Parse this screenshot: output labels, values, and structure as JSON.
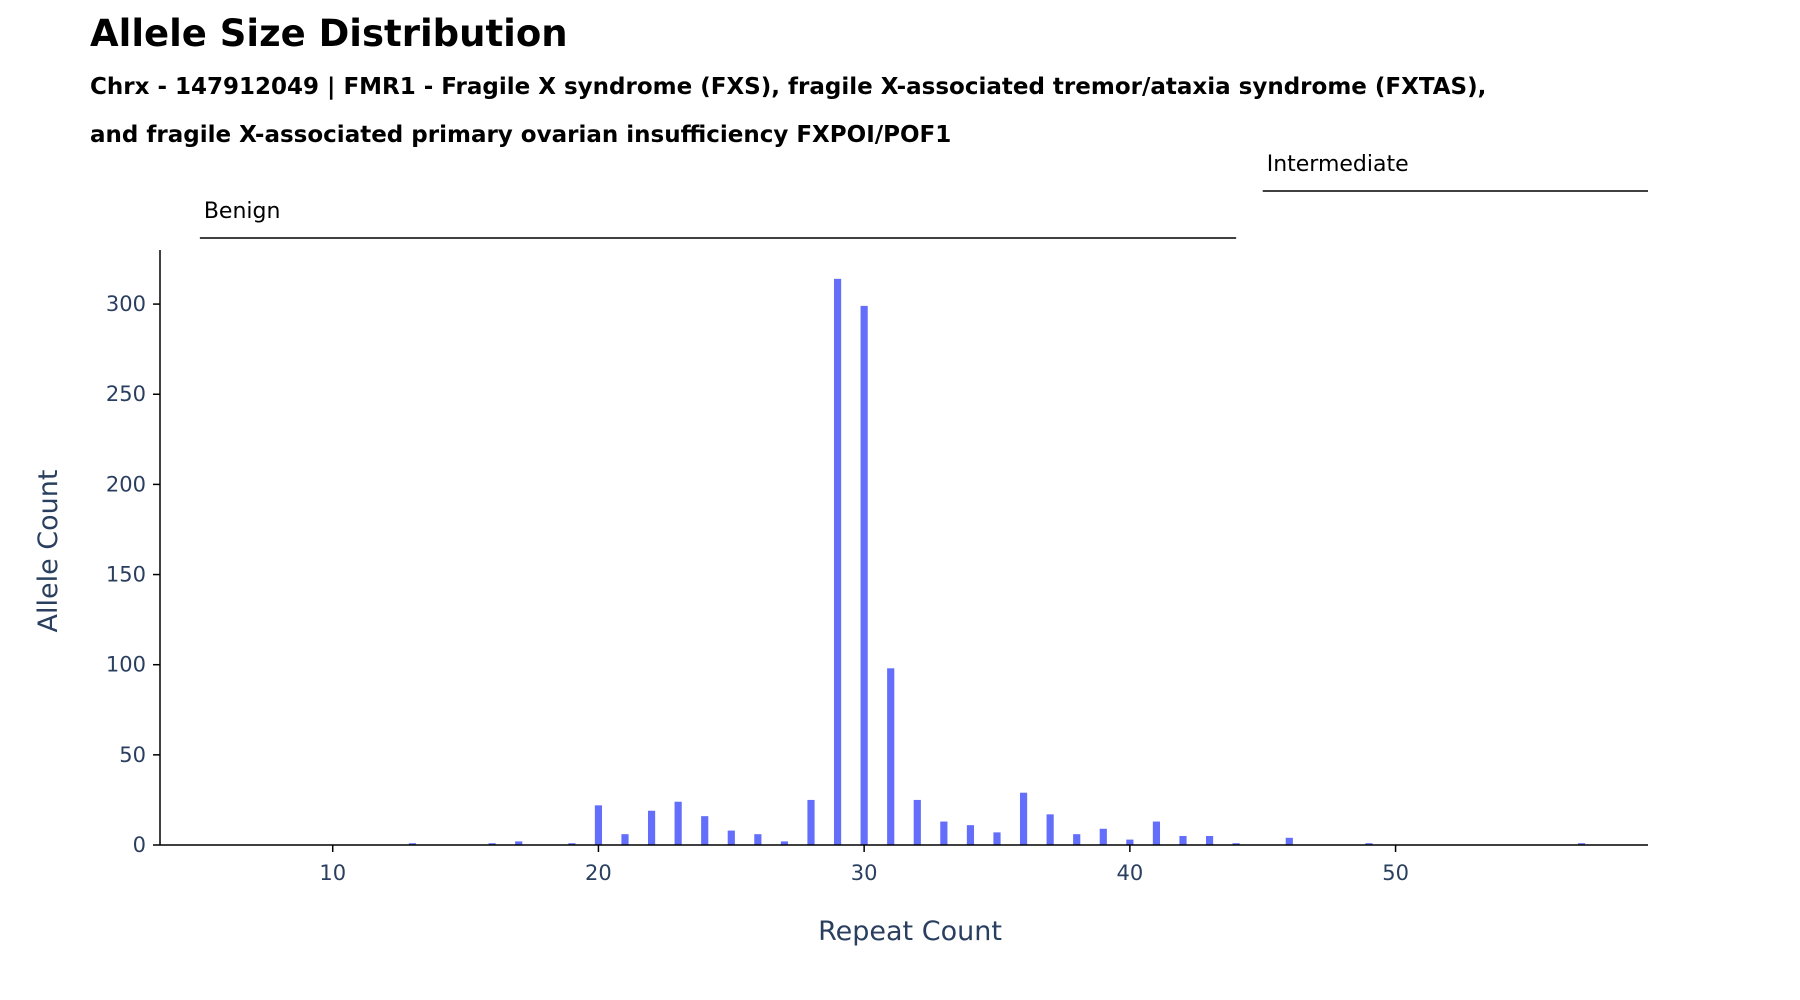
{
  "chart_data": {
    "type": "bar",
    "title": "Allele Size Distribution",
    "subtitle_line1": "Chrx - 147912049 | FMR1 - Fragile X syndrome (FXS), fragile X-associated tremor/ataxia syndrome (FXTAS),",
    "subtitle_line2": "and fragile X-associated primary ovarian insufficiency FXPOI/POF1",
    "xlabel": "Repeat Count",
    "ylabel": "Allele Count",
    "xlim": [
      3.5,
      59.5
    ],
    "ylim": [
      0,
      330
    ],
    "x_ticks": [
      10,
      20,
      30,
      40,
      50
    ],
    "y_ticks": [
      0,
      50,
      100,
      150,
      200,
      250,
      300
    ],
    "bar_color": "#636efa",
    "grid": false,
    "x": [
      13,
      16,
      17,
      19,
      20,
      21,
      22,
      23,
      24,
      25,
      26,
      27,
      28,
      29,
      30,
      31,
      32,
      33,
      34,
      35,
      36,
      37,
      38,
      39,
      40,
      41,
      42,
      43,
      44,
      46,
      49,
      57
    ],
    "values": [
      1,
      1,
      2,
      1,
      22,
      6,
      19,
      24,
      16,
      8,
      6,
      2,
      25,
      314,
      299,
      98,
      25,
      13,
      11,
      7,
      29,
      17,
      6,
      9,
      3,
      13,
      5,
      5,
      1,
      4,
      1,
      1
    ],
    "ranges": [
      {
        "label": "Benign",
        "start": 5,
        "end": 44
      },
      {
        "label": "Intermediate",
        "start": 45,
        "end": 59.5
      }
    ]
  }
}
